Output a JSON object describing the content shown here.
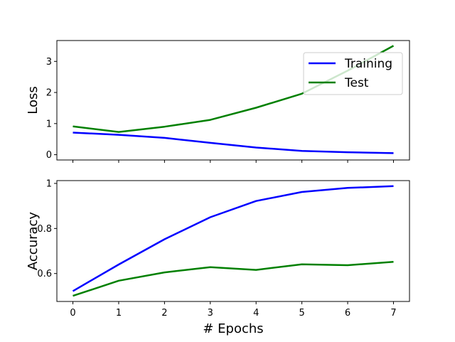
{
  "chart_data": [
    {
      "type": "line",
      "ylabel": "Loss",
      "xlabel": "",
      "x": [
        0,
        1,
        2,
        3,
        4,
        5,
        6,
        7
      ],
      "ylim": [
        -0.17,
        3.67
      ],
      "yticks": [
        0,
        1,
        2,
        3
      ],
      "series": [
        {
          "name": "Training",
          "color": "#0000ff",
          "values": [
            0.71,
            0.64,
            0.54,
            0.38,
            0.23,
            0.12,
            0.08,
            0.05
          ]
        },
        {
          "name": "Test",
          "color": "#008000",
          "values": [
            0.91,
            0.73,
            0.9,
            1.12,
            1.51,
            1.96,
            2.7,
            3.5
          ]
        }
      ],
      "legend": "upper-right",
      "grid": false
    },
    {
      "type": "line",
      "ylabel": "Accuracy",
      "xlabel": "# Epochs",
      "x": [
        0,
        1,
        2,
        3,
        4,
        5,
        6,
        7
      ],
      "ylim": [
        0.476,
        1.0125
      ],
      "yticks": [
        0.6,
        0.8,
        1.0
      ],
      "series": [
        {
          "name": "Training",
          "color": "#0000ff",
          "values": [
            0.522,
            0.64,
            0.752,
            0.85,
            0.922,
            0.962,
            0.98,
            0.988
          ]
        },
        {
          "name": "Test",
          "color": "#008000",
          "values": [
            0.501,
            0.568,
            0.605,
            0.628,
            0.616,
            0.641,
            0.637,
            0.652
          ]
        }
      ],
      "grid": false
    }
  ]
}
